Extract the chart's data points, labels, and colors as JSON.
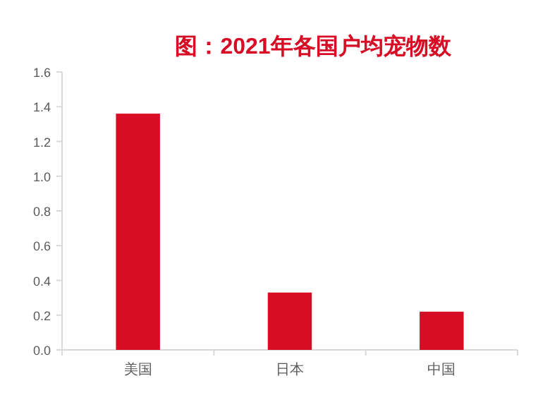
{
  "chart_data": {
    "type": "bar",
    "title": "图：2021年各国户均宠物数",
    "categories": [
      "美国",
      "日本",
      "中国"
    ],
    "values": [
      1.36,
      0.33,
      0.22
    ],
    "color": "#d60d24",
    "ylim": [
      0,
      1.6
    ],
    "yticks": [
      {
        "value": 0,
        "label": "0.0"
      },
      0.2,
      0.4,
      0.6,
      0.8,
      {
        "value": 1,
        "label": "1.0"
      },
      1.2,
      1.4,
      1.6
    ],
    "grid": false
  }
}
